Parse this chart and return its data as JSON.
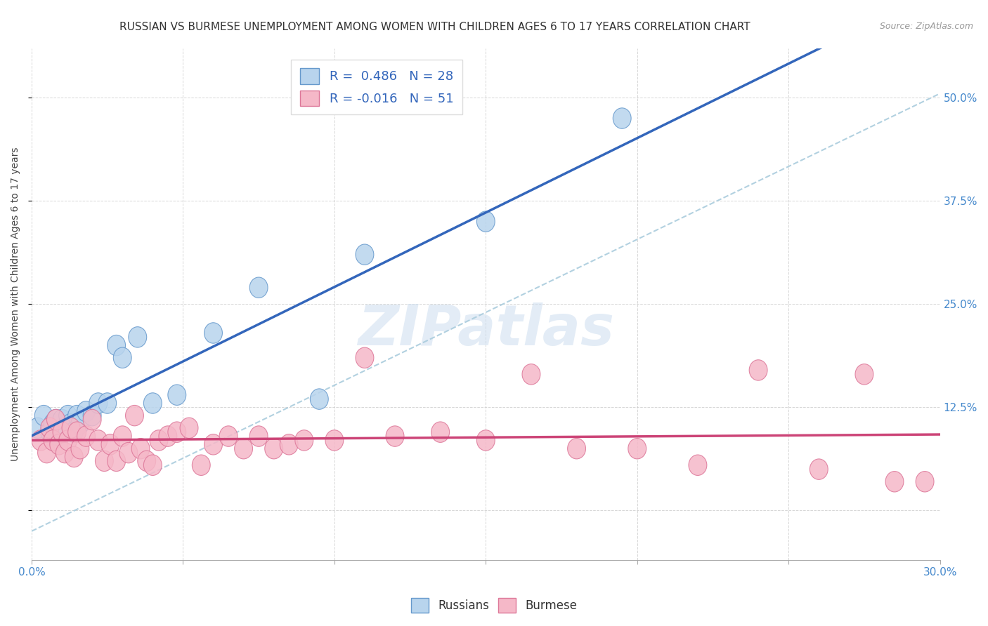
{
  "title": "RUSSIAN VS BURMESE UNEMPLOYMENT AMONG WOMEN WITH CHILDREN AGES 6 TO 17 YEARS CORRELATION CHART",
  "source": "Source: ZipAtlas.com",
  "ylabel": "Unemployment Among Women with Children Ages 6 to 17 years",
  "xlim": [
    0.0,
    0.3
  ],
  "ylim": [
    -0.06,
    0.56
  ],
  "xticks": [
    0.0,
    0.05,
    0.1,
    0.15,
    0.2,
    0.25,
    0.3
  ],
  "xticklabels": [
    "0.0%",
    "",
    "",
    "",
    "",
    "",
    "30.0%"
  ],
  "yticks_grid": [
    0.0,
    0.125,
    0.25,
    0.375,
    0.5
  ],
  "yticks_right": [
    0.125,
    0.25,
    0.375,
    0.5
  ],
  "yticklabels_right": [
    "12.5%",
    "25.0%",
    "37.5%",
    "50.0%"
  ],
  "russian_R": 0.486,
  "russian_N": 28,
  "burmese_R": -0.016,
  "burmese_N": 51,
  "russian_color": "#b8d4ed",
  "burmese_color": "#f5b8c8",
  "russian_edge_color": "#6699cc",
  "burmese_edge_color": "#dd7799",
  "russian_line_color": "#3366bb",
  "burmese_line_color": "#cc4477",
  "dashed_line_color": "#aaccdd",
  "watermark_color": "#ddeeff",
  "russian_x": [
    0.002,
    0.004,
    0.006,
    0.007,
    0.008,
    0.009,
    0.01,
    0.011,
    0.012,
    0.013,
    0.014,
    0.015,
    0.016,
    0.018,
    0.02,
    0.022,
    0.025,
    0.028,
    0.03,
    0.035,
    0.04,
    0.048,
    0.06,
    0.075,
    0.095,
    0.11,
    0.15,
    0.195
  ],
  "russian_y": [
    0.1,
    0.115,
    0.095,
    0.105,
    0.11,
    0.09,
    0.11,
    0.1,
    0.115,
    0.105,
    0.095,
    0.115,
    0.105,
    0.12,
    0.115,
    0.13,
    0.13,
    0.2,
    0.185,
    0.21,
    0.13,
    0.14,
    0.215,
    0.27,
    0.135,
    0.31,
    0.35,
    0.475
  ],
  "burmese_x": [
    0.003,
    0.005,
    0.006,
    0.007,
    0.008,
    0.009,
    0.01,
    0.011,
    0.012,
    0.013,
    0.014,
    0.015,
    0.016,
    0.018,
    0.02,
    0.022,
    0.024,
    0.026,
    0.028,
    0.03,
    0.032,
    0.034,
    0.036,
    0.038,
    0.04,
    0.042,
    0.045,
    0.048,
    0.052,
    0.056,
    0.06,
    0.065,
    0.07,
    0.075,
    0.08,
    0.085,
    0.09,
    0.1,
    0.11,
    0.12,
    0.135,
    0.15,
    0.165,
    0.18,
    0.2,
    0.22,
    0.24,
    0.26,
    0.275,
    0.285,
    0.295
  ],
  "burmese_y": [
    0.085,
    0.07,
    0.1,
    0.085,
    0.11,
    0.08,
    0.095,
    0.07,
    0.085,
    0.1,
    0.065,
    0.095,
    0.075,
    0.09,
    0.11,
    0.085,
    0.06,
    0.08,
    0.06,
    0.09,
    0.07,
    0.115,
    0.075,
    0.06,
    0.055,
    0.085,
    0.09,
    0.095,
    0.1,
    0.055,
    0.08,
    0.09,
    0.075,
    0.09,
    0.075,
    0.08,
    0.085,
    0.085,
    0.185,
    0.09,
    0.095,
    0.085,
    0.165,
    0.075,
    0.075,
    0.055,
    0.17,
    0.05,
    0.165,
    0.035,
    0.035
  ],
  "title_fontsize": 11,
  "axis_label_fontsize": 10,
  "tick_fontsize": 11,
  "legend_fontsize": 13,
  "marker_size": 130
}
